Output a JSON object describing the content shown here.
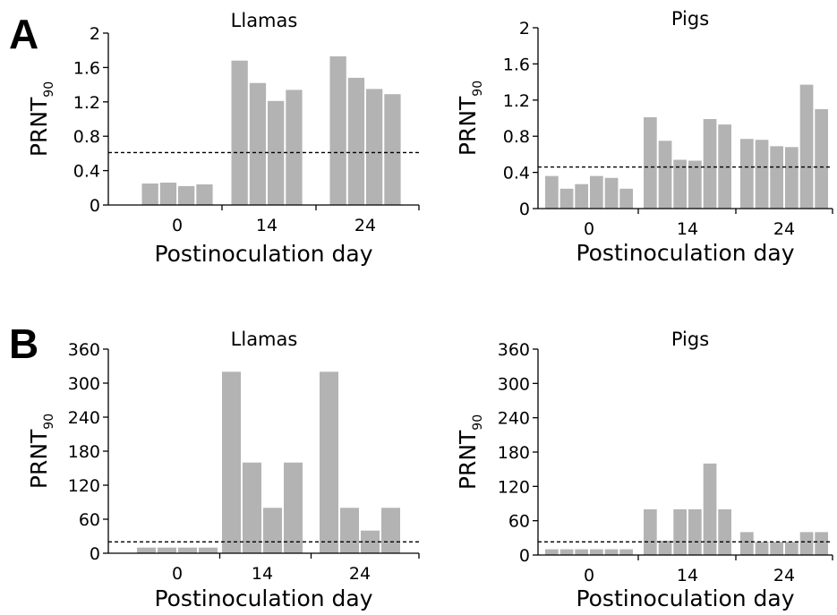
{
  "panels": [
    {
      "letter": "A"
    },
    {
      "letter": "B"
    }
  ],
  "colors": {
    "bar": "#b3b3b3",
    "axis": "#000000",
    "threshold": "#000000"
  },
  "chart_data": [
    {
      "panel": "A",
      "type": "bar",
      "title": "Llamas",
      "xlabel": "Postinoculation day",
      "ylabel_main": "PRNT",
      "ylabel_sub": "90",
      "ylim": [
        0,
        2
      ],
      "yticks": [
        "0",
        "0.4",
        "0.8",
        "1.2",
        "1.6",
        "2"
      ],
      "threshold": 0.61,
      "groups": [
        {
          "label": "0",
          "values": [
            0.25,
            0.26,
            0.22,
            0.24
          ]
        },
        {
          "label": "14",
          "values": [
            1.68,
            1.42,
            1.21,
            1.34
          ]
        },
        {
          "label": "24",
          "values": [
            1.73,
            1.48,
            1.35,
            1.29
          ]
        }
      ]
    },
    {
      "panel": "A",
      "type": "bar",
      "title": "Pigs",
      "xlabel": "Postinoculation day",
      "ylabel_main": "PRNT",
      "ylabel_sub": "90",
      "ylim": [
        0,
        2
      ],
      "yticks": [
        "0",
        "0.4",
        "0.8",
        "1.2",
        "1.6",
        "2"
      ],
      "threshold": 0.46,
      "groups": [
        {
          "label": "0",
          "values": [
            0.36,
            0.22,
            0.27,
            0.36,
            0.34,
            0.22
          ]
        },
        {
          "label": "14",
          "values": [
            1.01,
            0.75,
            0.54,
            0.53,
            0.99,
            0.93
          ]
        },
        {
          "label": "24",
          "values": [
            0.77,
            0.76,
            0.69,
            0.68,
            1.37,
            1.1
          ]
        }
      ]
    },
    {
      "panel": "B",
      "type": "bar",
      "title": "Llamas",
      "xlabel": "Postinoculation day",
      "ylabel_main": "PRNT",
      "ylabel_sub": "90",
      "ylim": [
        0,
        360
      ],
      "yticks": [
        "0",
        "60",
        "120",
        "180",
        "240",
        "300",
        "360"
      ],
      "threshold": 20,
      "groups": [
        {
          "label": "0",
          "values": [
            10,
            10,
            10,
            10
          ]
        },
        {
          "label": "14",
          "values": [
            320,
            160,
            80,
            160
          ]
        },
        {
          "label": "24",
          "values": [
            320,
            80,
            40,
            80
          ]
        }
      ]
    },
    {
      "panel": "B",
      "type": "bar",
      "title": "Pigs",
      "xlabel": "Postinoculation day",
      "ylabel_main": "PRNT",
      "ylabel_sub": "90",
      "ylim": [
        0,
        360
      ],
      "yticks": [
        "0",
        "60",
        "120",
        "180",
        "240",
        "300",
        "360"
      ],
      "threshold": 23,
      "groups": [
        {
          "label": "0",
          "values": [
            10,
            10,
            10,
            10,
            10,
            10
          ]
        },
        {
          "label": "14",
          "values": [
            80,
            25,
            80,
            80,
            160,
            80
          ]
        },
        {
          "label": "24",
          "values": [
            40,
            23,
            23,
            23,
            40,
            40
          ]
        }
      ]
    }
  ]
}
